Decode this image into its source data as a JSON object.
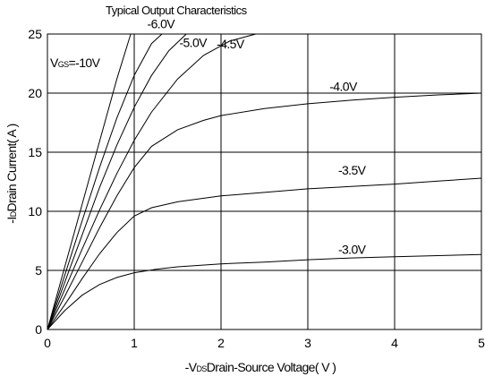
{
  "chart_data": {
    "type": "line",
    "title": "Typical Output Characteristics",
    "xlabel_prefix": "-V",
    "xlabel_sub": "DS",
    "xlabel_rest": "Drain-Source Voltage( V )",
    "ylabel_prefix": "-I",
    "ylabel_sub": "D",
    "ylabel_rest": "Drain Current( A )",
    "xlim": [
      0,
      5
    ],
    "ylim": [
      0,
      25
    ],
    "xticks": [
      0,
      1,
      2,
      3,
      4,
      5
    ],
    "yticks": [
      0,
      5,
      10,
      15,
      20,
      25
    ],
    "grid": true,
    "vgs_prefix": "V",
    "vgs_sub": "GS",
    "vgs_value": "=-10V",
    "series": [
      {
        "name": "-3.0V",
        "label_x": 3.35,
        "label_y": 6.4,
        "points": [
          [
            0,
            0
          ],
          [
            0.2,
            1.6
          ],
          [
            0.4,
            2.9
          ],
          [
            0.6,
            3.8
          ],
          [
            0.8,
            4.4
          ],
          [
            1.0,
            4.8
          ],
          [
            1.25,
            5.1
          ],
          [
            1.5,
            5.3
          ],
          [
            2.0,
            5.55
          ],
          [
            2.5,
            5.7
          ],
          [
            3.0,
            5.9
          ],
          [
            3.5,
            6.05
          ],
          [
            4.0,
            6.15
          ],
          [
            4.5,
            6.25
          ],
          [
            5.0,
            6.35
          ]
        ]
      },
      {
        "name": "-3.5V",
        "label_x": 3.35,
        "label_y": 13.1,
        "points": [
          [
            0,
            0
          ],
          [
            0.2,
            2.1
          ],
          [
            0.4,
            4.3
          ],
          [
            0.6,
            6.4
          ],
          [
            0.8,
            8.2
          ],
          [
            1.0,
            9.6
          ],
          [
            1.2,
            10.3
          ],
          [
            1.5,
            10.8
          ],
          [
            2.0,
            11.3
          ],
          [
            2.5,
            11.6
          ],
          [
            3.0,
            11.9
          ],
          [
            3.5,
            12.1
          ],
          [
            4.0,
            12.3
          ],
          [
            4.5,
            12.55
          ],
          [
            5.0,
            12.8
          ]
        ]
      },
      {
        "name": "-4.0V",
        "label_x": 3.25,
        "label_y": 20.2,
        "points": [
          [
            0,
            0
          ],
          [
            0.2,
            2.8
          ],
          [
            0.4,
            5.7
          ],
          [
            0.6,
            8.6
          ],
          [
            0.8,
            11.3
          ],
          [
            1.0,
            13.7
          ],
          [
            1.2,
            15.5
          ],
          [
            1.5,
            16.9
          ],
          [
            1.8,
            17.7
          ],
          [
            2.0,
            18.1
          ],
          [
            2.5,
            18.7
          ],
          [
            3.0,
            19.1
          ],
          [
            3.5,
            19.4
          ],
          [
            4.0,
            19.65
          ],
          [
            4.5,
            19.85
          ],
          [
            5.0,
            20.0
          ]
        ]
      },
      {
        "name": "-4.5V",
        "label_x": 1.95,
        "label_y": 23.8,
        "points": [
          [
            0,
            0
          ],
          [
            0.2,
            3.4
          ],
          [
            0.4,
            6.8
          ],
          [
            0.6,
            10.1
          ],
          [
            0.8,
            13.2
          ],
          [
            1.0,
            16.0
          ],
          [
            1.2,
            18.4
          ],
          [
            1.5,
            21.2
          ],
          [
            1.8,
            23.2
          ],
          [
            2.1,
            24.4
          ],
          [
            2.4,
            25.0
          ]
        ]
      },
      {
        "name": "-5.0V",
        "label_x": 1.52,
        "label_y": 23.9,
        "points": [
          [
            0,
            0
          ],
          [
            0.2,
            4.0
          ],
          [
            0.4,
            8.0
          ],
          [
            0.6,
            12.0
          ],
          [
            0.8,
            15.6
          ],
          [
            1.0,
            18.8
          ],
          [
            1.2,
            21.5
          ],
          [
            1.4,
            23.6
          ],
          [
            1.6,
            25.0
          ]
        ]
      },
      {
        "name": "-6.0V",
        "label_x": 1.15,
        "label_y": 25.5,
        "points": [
          [
            0,
            0
          ],
          [
            0.2,
            4.6
          ],
          [
            0.4,
            9.2
          ],
          [
            0.6,
            13.7
          ],
          [
            0.8,
            17.9
          ],
          [
            1.0,
            21.5
          ],
          [
            1.2,
            24.2
          ],
          [
            1.32,
            25.0
          ]
        ]
      },
      {
        "name": "-10V",
        "label_x": null,
        "label_y": null,
        "points": [
          [
            0,
            0
          ],
          [
            0.2,
            5.3
          ],
          [
            0.4,
            10.6
          ],
          [
            0.6,
            15.9
          ],
          [
            0.8,
            21.2
          ],
          [
            0.96,
            25.0
          ]
        ]
      }
    ]
  }
}
